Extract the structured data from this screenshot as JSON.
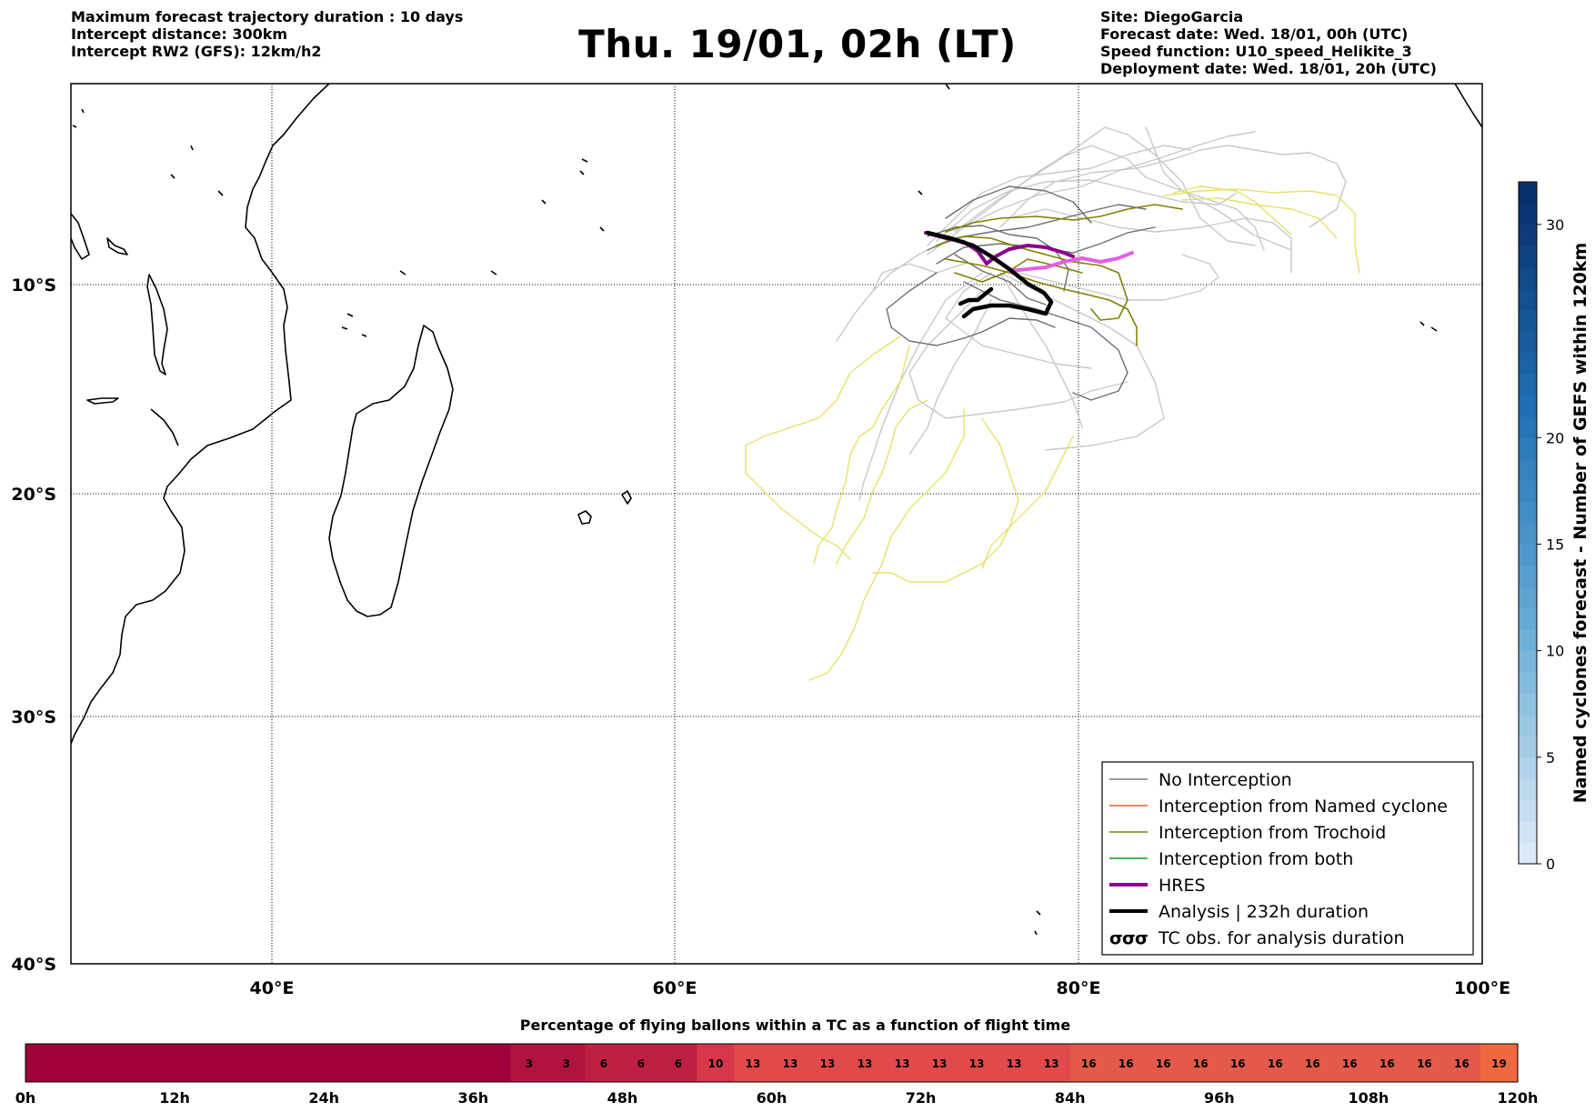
{
  "header": {
    "left": [
      "Maximum forecast trajectory duration : 10 days",
      "Intercept distance: 300km",
      "Intercept RW2 (GFS):  12km/h2"
    ],
    "title": "Thu. 19/01, 02h (LT)",
    "right": [
      "Site: DiegoGarcia",
      "Forecast date: Wed. 18/01, 00h (UTC)",
      "Speed function: U10_speed_Helikite_3",
      "Deployment date: Wed. 18/01, 20h (UTC)"
    ]
  },
  "map": {
    "lon_range": [
      30,
      100
    ],
    "lat_range": [
      -40,
      0
    ],
    "lon_ticks": [
      {
        "value": 40,
        "label": "40°E"
      },
      {
        "value": 60,
        "label": "60°E"
      },
      {
        "value": 80,
        "label": "80°E"
      },
      {
        "value": 100,
        "label": "100°E"
      }
    ],
    "lat_ticks": [
      {
        "value": -10,
        "label": "10°S"
      },
      {
        "value": -20,
        "label": "20°S"
      },
      {
        "value": -30,
        "label": "30°S"
      },
      {
        "value": -40,
        "label": "40°S"
      }
    ],
    "grid": "dotted"
  },
  "legend": {
    "position": "lower-right",
    "items": [
      {
        "label": "No Interception",
        "color": "#777777",
        "style": "thin",
        "icon": "line"
      },
      {
        "label": "Interception from Named cyclone",
        "color": "#ff5522",
        "style": "thin",
        "icon": "line"
      },
      {
        "label": "Interception from Trochoid",
        "color": "#808000",
        "style": "thin",
        "icon": "line"
      },
      {
        "label": "Interception from both",
        "color": "#119911",
        "style": "thin",
        "icon": "line"
      },
      {
        "label": "HRES",
        "color": "#8b008b",
        "style": "thick",
        "icon": "line"
      },
      {
        "label": "Analysis | 232h duration",
        "color": "#000000",
        "style": "thick",
        "icon": "line"
      },
      {
        "label": "TC obs. for analysis duration",
        "color": "#000000",
        "style": "symbol",
        "icon": "cyclone-symbols"
      }
    ]
  },
  "colorbar": {
    "title": "Named cyclones forecast - Number of GEFS within 120km",
    "range": [
      0,
      32
    ],
    "ticks": [
      0,
      5,
      10,
      15,
      20,
      30
    ],
    "colors": [
      "#dce9f7",
      "#6aaed6",
      "#2171b5",
      "#08306b"
    ]
  },
  "percentage_bar": {
    "title": "Percentage of flying ballons within a TC as a function of flight time",
    "hours": [
      0,
      120
    ],
    "tick_labels": [
      "0h",
      "12h",
      "24h",
      "36h",
      "48h",
      "60h",
      "72h",
      "84h",
      "96h",
      "108h",
      "120h"
    ],
    "values": [
      0,
      0,
      0,
      0,
      0,
      0,
      0,
      0,
      0,
      0,
      0,
      0,
      0,
      3,
      3,
      6,
      6,
      6,
      10,
      13,
      13,
      13,
      13,
      13,
      13,
      13,
      13,
      13,
      16,
      16,
      16,
      16,
      16,
      16,
      16,
      16,
      16,
      16,
      16,
      19
    ],
    "colors": {
      "0": "#a0003c",
      "3": "#b0133f",
      "6": "#c01f44",
      "10": "#d8364a",
      "13": "#e04a4b",
      "16": "#e35a4a",
      "19": "#f0683f"
    }
  }
}
